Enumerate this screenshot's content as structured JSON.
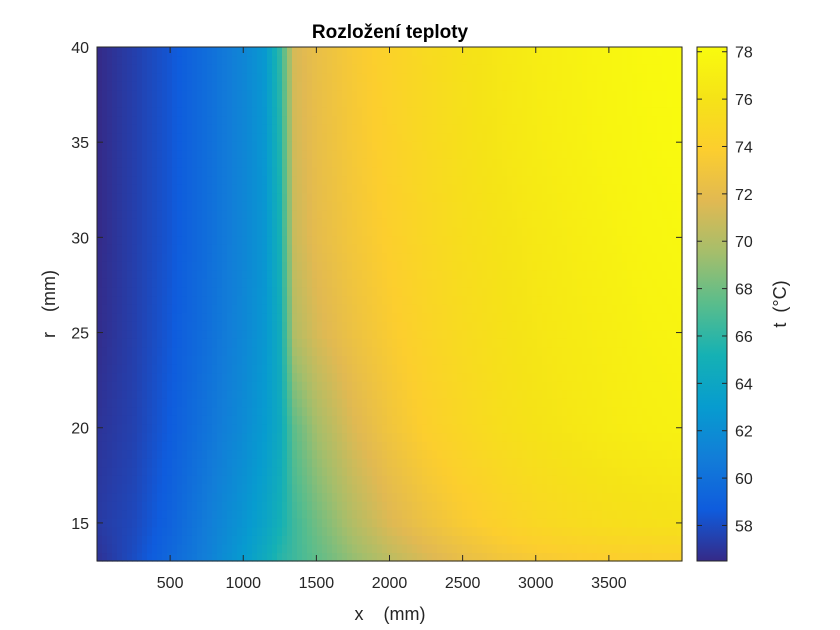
{
  "chart_data": {
    "type": "heatmap",
    "title": "Rozložení teploty",
    "xlabel": "x    (mm)",
    "ylabel": "r    (mm)",
    "colorbar_label": "t  (°C)",
    "colormap": "parula",
    "xlim": [
      0,
      4000
    ],
    "ylim": [
      13,
      40
    ],
    "clim": [
      56.5,
      78.2
    ],
    "xticks": [
      500,
      1000,
      1500,
      2000,
      2500,
      3000,
      3500
    ],
    "yticks": [
      15,
      20,
      25,
      30,
      35,
      40
    ],
    "cticks": [
      58,
      60,
      62,
      64,
      66,
      68,
      70,
      72,
      74,
      76,
      78
    ],
    "x": [
      0,
      250,
      500,
      750,
      1000,
      1150,
      1250,
      1350,
      1500,
      1750,
      2000,
      2250,
      2500,
      2750,
      3000,
      3250,
      3500,
      3750,
      4000
    ],
    "y": [
      13,
      15,
      20,
      25,
      30,
      35,
      40
    ],
    "t": [
      [
        56.8,
        57.2,
        56.9,
        56.6,
        56.5,
        56.5,
        56.5
      ],
      [
        58.0,
        57.8,
        57.5,
        57.4,
        57.4,
        57.4,
        57.4
      ],
      [
        59.5,
        59.1,
        58.7,
        58.5,
        58.4,
        58.4,
        58.4
      ],
      [
        61.0,
        60.8,
        60.2,
        59.9,
        59.8,
        59.8,
        59.8
      ],
      [
        63.0,
        62.5,
        61.8,
        61.5,
        61.4,
        61.4,
        61.4
      ],
      [
        64.5,
        63.8,
        63.0,
        62.7,
        62.6,
        62.7,
        62.8
      ],
      [
        65.8,
        65.0,
        64.3,
        64.5,
        65.0,
        65.5,
        66.0
      ],
      [
        66.5,
        66.5,
        67.5,
        70.0,
        70.8,
        71.1,
        71.3
      ],
      [
        67.5,
        68.0,
        69.5,
        71.3,
        72.0,
        72.2,
        72.3
      ],
      [
        69.0,
        70.0,
        71.5,
        72.6,
        73.1,
        73.3,
        73.4
      ],
      [
        70.3,
        71.5,
        72.9,
        73.6,
        74.0,
        74.2,
        74.3
      ],
      [
        71.3,
        72.6,
        74.0,
        74.5,
        74.8,
        75.0,
        75.1
      ],
      [
        72.2,
        73.5,
        74.8,
        75.2,
        75.5,
        75.7,
        75.8
      ],
      [
        72.9,
        74.2,
        75.5,
        75.8,
        76.0,
        76.3,
        76.4
      ],
      [
        73.3,
        74.8,
        76.0,
        76.3,
        76.5,
        76.8,
        76.9
      ],
      [
        73.6,
        75.2,
        76.4,
        76.7,
        76.9,
        77.2,
        77.3
      ],
      [
        73.8,
        75.5,
        76.8,
        77.0,
        77.3,
        77.6,
        77.7
      ],
      [
        73.9,
        75.7,
        77.1,
        77.4,
        77.7,
        77.9,
        78.0
      ],
      [
        74.0,
        75.9,
        77.3,
        77.6,
        77.9,
        78.1,
        78.2
      ]
    ]
  }
}
